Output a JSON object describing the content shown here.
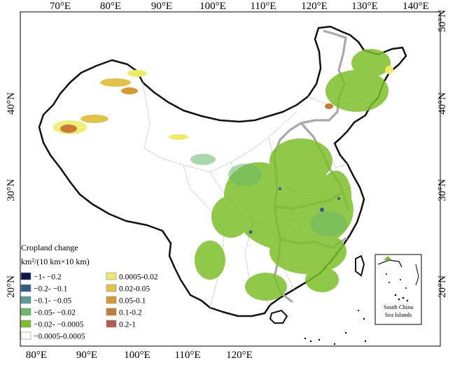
{
  "axes": {
    "top_labels": [
      "70°E",
      "80°E",
      "90°E",
      "100°E",
      "110°E",
      "120°E",
      "130°E",
      "140°E"
    ],
    "bottom_labels": [
      "80°E",
      "90°E",
      "100°E",
      "110°E",
      "120°E"
    ],
    "left_labels": [
      "40°N",
      "30°N",
      "20°N"
    ],
    "right_labels": [
      "50°N",
      "40°N",
      "30°N",
      "20°N"
    ]
  },
  "legend": {
    "title": "Cropland change",
    "unit": "km²/(10 km×10 km)",
    "left_items": [
      {
        "label": "−1- −0.2",
        "color": "#0c1a4a"
      },
      {
        "label": "−0.2- −0.1",
        "color": "#2f5f86"
      },
      {
        "label": "−0.1- −0.05",
        "color": "#5b9a96"
      },
      {
        "label": "−0.05- −0.02",
        "color": "#6ab86a"
      },
      {
        "label": "−0.02- −0.0005",
        "color": "#7dbf2a"
      },
      {
        "label": "−0.0005-0.0005",
        "color": "#ffffff"
      }
    ],
    "right_items": [
      {
        "label": "0.0005-0.02",
        "color": "#ecec6a"
      },
      {
        "label": "0.02-0.05",
        "color": "#e3c24a"
      },
      {
        "label": "0.05-0.1",
        "color": "#d99a36"
      },
      {
        "label": "0.1-0.2",
        "color": "#c97a3a"
      },
      {
        "label": "0.2-1",
        "color": "#b85a50"
      }
    ]
  },
  "inset": {
    "label_line1": "South China",
    "label_line2": "Sea Islands"
  },
  "colors": {
    "country_border": "#111111",
    "region_border": "#a9a9a9",
    "province_border": "#cfcfcf",
    "cropland_decrease": "#7dbf2a",
    "cropland_increase": "#e3c24a"
  }
}
